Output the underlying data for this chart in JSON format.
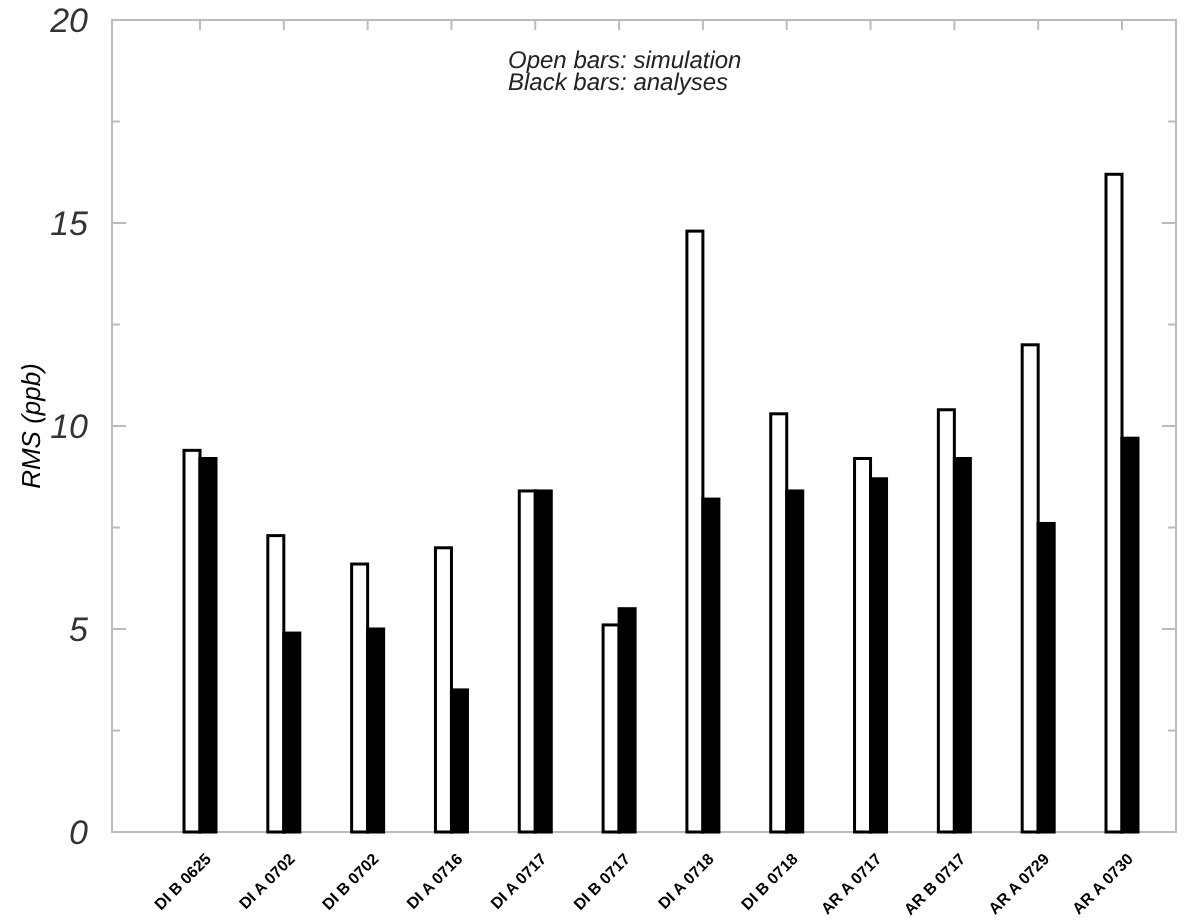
{
  "chart_data": {
    "type": "bar",
    "ylabel": "RMS (ppb)",
    "annotations": [
      "Open bars: simulation",
      "Black bars: analyses"
    ],
    "categories": [
      "DI B 0625",
      "DI A 0702",
      "DI B 0702",
      "DI A 0716",
      "DI A 0717",
      "DI B 0717",
      "DI A 0718",
      "DI B 0718",
      "AR A 0717",
      "AR B 0717",
      "AR A 0729",
      "AR A 0730"
    ],
    "series": [
      {
        "color": "#ffffff",
        "values": [
          9.4,
          7.3,
          6.6,
          7.0,
          8.4,
          5.1,
          14.8,
          10.3,
          9.2,
          10.4,
          12.0,
          16.2
        ]
      },
      {
        "color": "#000000",
        "values": [
          9.2,
          4.9,
          5.0,
          3.5,
          8.4,
          5.5,
          8.2,
          8.4,
          8.7,
          9.2,
          7.6,
          9.7
        ]
      }
    ],
    "ylim": [
      0,
      20
    ],
    "yticks": [
      0,
      {
        "value": 2.5,
        "label": null
      },
      5,
      {
        "value": 7.5,
        "label": null
      },
      10,
      {
        "value": 12.5,
        "label": null
      },
      15,
      {
        "value": 17.5,
        "label": null
      },
      20
    ],
    "grid": false
  }
}
